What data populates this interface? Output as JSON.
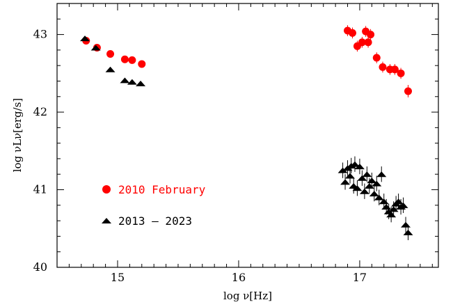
{
  "chart_data": {
    "type": "scatter",
    "title": "",
    "xlabel": "log ν[Hz]",
    "ylabel": "log νLν[erg/s]",
    "xlim": [
      14.5,
      17.65
    ],
    "ylim": [
      40.0,
      43.4
    ],
    "xticks": [
      15,
      16,
      17
    ],
    "xtick_labels": [
      "15",
      "16",
      "17"
    ],
    "yticks": [
      40,
      41,
      42,
      43
    ],
    "ytick_labels": [
      "40",
      "41",
      "42",
      "43"
    ],
    "x_minor_step": 0.1,
    "y_minor_step": 0.2,
    "grid": false,
    "legend_position": "lower-left inside",
    "series": [
      {
        "name": "2010 February",
        "color": "#ff0000",
        "marker": "circle",
        "points": [
          {
            "x": 14.74,
            "y": 42.92,
            "err": 0.03
          },
          {
            "x": 14.83,
            "y": 42.83,
            "err": 0.03
          },
          {
            "x": 14.94,
            "y": 42.75,
            "err": 0.03
          },
          {
            "x": 15.06,
            "y": 42.68,
            "err": 0.03
          },
          {
            "x": 15.12,
            "y": 42.67,
            "err": 0.03
          },
          {
            "x": 15.2,
            "y": 42.62,
            "err": 0.03
          },
          {
            "x": 16.9,
            "y": 43.05,
            "err": 0.07
          },
          {
            "x": 16.94,
            "y": 43.02,
            "err": 0.07
          },
          {
            "x": 16.98,
            "y": 42.85,
            "err": 0.07
          },
          {
            "x": 17.02,
            "y": 42.9,
            "err": 0.07
          },
          {
            "x": 17.05,
            "y": 43.04,
            "err": 0.07
          },
          {
            "x": 17.07,
            "y": 42.9,
            "err": 0.07
          },
          {
            "x": 17.09,
            "y": 43.0,
            "err": 0.07
          },
          {
            "x": 17.14,
            "y": 42.7,
            "err": 0.07
          },
          {
            "x": 17.19,
            "y": 42.58,
            "err": 0.07
          },
          {
            "x": 17.25,
            "y": 42.55,
            "err": 0.07
          },
          {
            "x": 17.29,
            "y": 42.55,
            "err": 0.07
          },
          {
            "x": 17.34,
            "y": 42.5,
            "err": 0.07
          },
          {
            "x": 17.4,
            "y": 42.27,
            "err": 0.08
          }
        ]
      },
      {
        "name": "2013 – 2023",
        "color": "#000000",
        "marker": "triangle",
        "points": [
          {
            "x": 14.73,
            "y": 42.95,
            "err": 0
          },
          {
            "x": 14.82,
            "y": 42.83,
            "err": 0
          },
          {
            "x": 14.94,
            "y": 42.55,
            "err": 0
          },
          {
            "x": 15.06,
            "y": 42.41,
            "err": 0
          },
          {
            "x": 15.12,
            "y": 42.39,
            "err": 0
          },
          {
            "x": 15.19,
            "y": 42.37,
            "err": 0
          },
          {
            "x": 16.86,
            "y": 41.25,
            "err": 0.1
          },
          {
            "x": 16.9,
            "y": 41.28,
            "err": 0.1
          },
          {
            "x": 16.93,
            "y": 41.31,
            "err": 0.1
          },
          {
            "x": 16.96,
            "y": 41.33,
            "err": 0.1
          },
          {
            "x": 17.0,
            "y": 41.3,
            "err": 0.1
          },
          {
            "x": 16.88,
            "y": 41.1,
            "err": 0.1
          },
          {
            "x": 16.92,
            "y": 41.18,
            "err": 0.1
          },
          {
            "x": 16.95,
            "y": 41.05,
            "err": 0.1
          },
          {
            "x": 16.98,
            "y": 41.02,
            "err": 0.1
          },
          {
            "x": 17.02,
            "y": 41.15,
            "err": 0.1
          },
          {
            "x": 17.04,
            "y": 40.98,
            "err": 0.1
          },
          {
            "x": 17.06,
            "y": 41.2,
            "err": 0.1
          },
          {
            "x": 17.08,
            "y": 41.05,
            "err": 0.1
          },
          {
            "x": 17.1,
            "y": 41.12,
            "err": 0.1
          },
          {
            "x": 17.12,
            "y": 40.95,
            "err": 0.1
          },
          {
            "x": 17.14,
            "y": 41.08,
            "err": 0.1
          },
          {
            "x": 17.16,
            "y": 40.9,
            "err": 0.1
          },
          {
            "x": 17.18,
            "y": 41.2,
            "err": 0.1
          },
          {
            "x": 17.2,
            "y": 40.85,
            "err": 0.1
          },
          {
            "x": 17.22,
            "y": 40.78,
            "err": 0.1
          },
          {
            "x": 17.24,
            "y": 40.72,
            "err": 0.1
          },
          {
            "x": 17.26,
            "y": 40.68,
            "err": 0.1
          },
          {
            "x": 17.28,
            "y": 40.75,
            "err": 0.1
          },
          {
            "x": 17.3,
            "y": 40.82,
            "err": 0.1
          },
          {
            "x": 17.32,
            "y": 40.85,
            "err": 0.1
          },
          {
            "x": 17.34,
            "y": 40.78,
            "err": 0.1
          },
          {
            "x": 17.36,
            "y": 40.8,
            "err": 0.1
          },
          {
            "x": 17.38,
            "y": 40.55,
            "err": 0.1
          },
          {
            "x": 17.4,
            "y": 40.45,
            "err": 0.1
          }
        ]
      }
    ]
  }
}
